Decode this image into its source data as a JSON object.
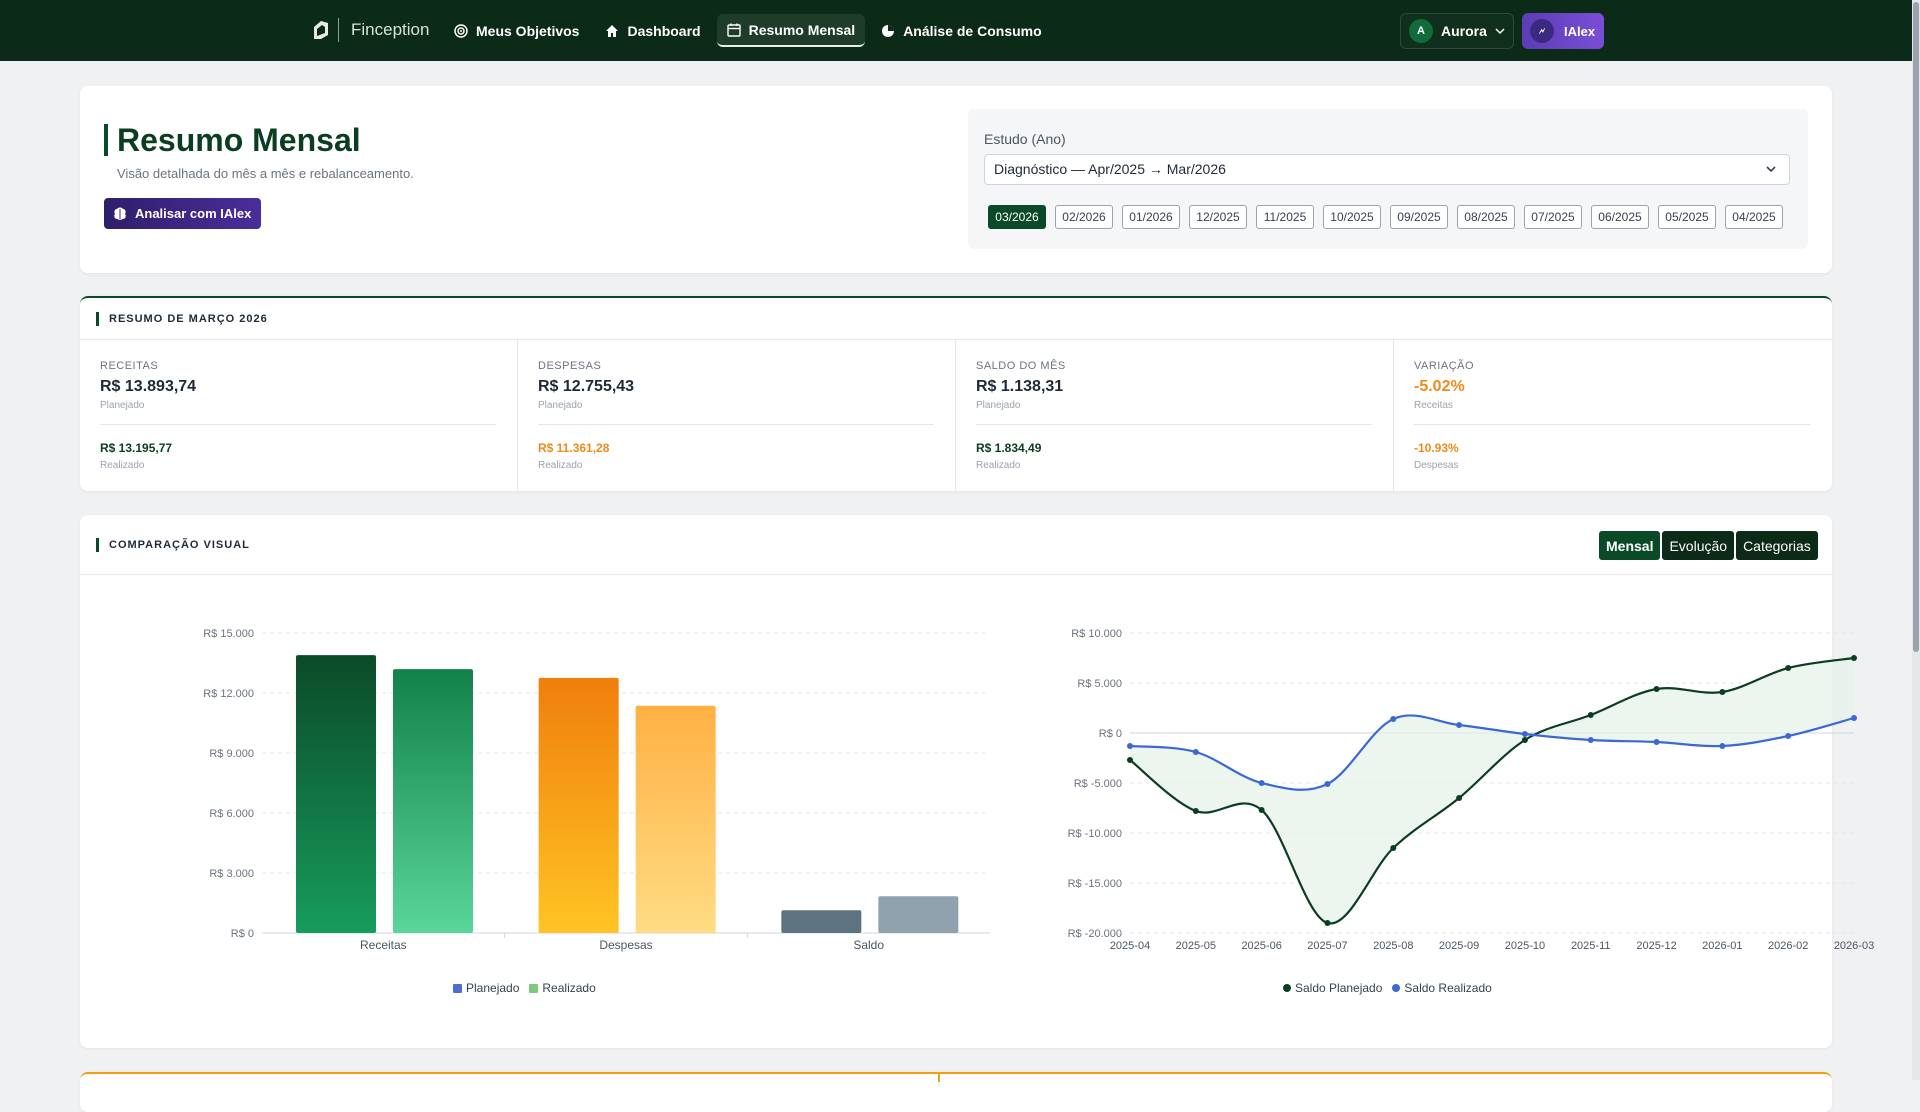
{
  "nav": {
    "brand": "Finception",
    "items": [
      {
        "label": "Meus Objetivos",
        "icon": "target-icon"
      },
      {
        "label": "Dashboard",
        "icon": "home-icon"
      },
      {
        "label": "Resumo Mensal",
        "icon": "calendar-icon",
        "active": true
      },
      {
        "label": "Análise de Consumo",
        "icon": "pie-icon"
      }
    ],
    "user": {
      "initial": "A",
      "name": "Aurora"
    },
    "ialex": {
      "initial": "🗲",
      "label": "IAlex"
    }
  },
  "header": {
    "title": "Resumo Mensal",
    "subtitle": "Visão detalhada do mês a mês e rebalanceamento.",
    "analyze_button": "Analisar com IAlex",
    "study_label": "Estudo (Ano)",
    "study_value": "Diagnóstico — Apr/2025 → Mar/2026",
    "months": [
      "03/2026",
      "02/2026",
      "01/2026",
      "12/2025",
      "11/2025",
      "10/2025",
      "09/2025",
      "08/2025",
      "07/2025",
      "06/2025",
      "05/2025",
      "04/2025"
    ],
    "active_month": "03/2026"
  },
  "summary": {
    "title": "RESUMO DE MARÇO 2026",
    "cols": [
      {
        "label": "RECEITAS",
        "value": "R$ 13.893,74",
        "sub": "Planejado",
        "value2": "R$ 13.195,77",
        "sub2": "Realizado",
        "color1": "#1f2937",
        "color2": "#0b3d21"
      },
      {
        "label": "DESPESAS",
        "value": "R$ 12.755,43",
        "sub": "Planejado",
        "value2": "R$ 11.361,28",
        "sub2": "Realizado",
        "color1": "#1f2937",
        "color2": "#f08a1c"
      },
      {
        "label": "SALDO DO MÊS",
        "value": "R$ 1.138,31",
        "sub": "Planejado",
        "value2": "R$ 1.834,49",
        "sub2": "Realizado",
        "color1": "#1f2937",
        "color2": "#0b3d21"
      },
      {
        "label": "VARIAÇÃO",
        "value": "-5.02%",
        "sub": "Receitas",
        "value2": "-10.93%",
        "sub2": "Despesas",
        "color1": "#f08a1c",
        "color2": "#f08a1c"
      }
    ]
  },
  "comparison": {
    "title": "COMPARAÇÃO VISUAL",
    "tabs": [
      "Mensal",
      "Evolução",
      "Categorias"
    ],
    "active_tab": "Mensal"
  },
  "chart_data": [
    {
      "type": "bar",
      "categories": [
        "Receitas",
        "Despesas",
        "Saldo"
      ],
      "series": [
        {
          "name": "Planejado",
          "values": [
            13893.74,
            12755.43,
            1138.31
          ]
        },
        {
          "name": "Realizado",
          "values": [
            13195.77,
            11361.28,
            1834.49
          ]
        }
      ],
      "ylim": [
        0,
        15000
      ],
      "yticks": [
        "R$ 15.000",
        "R$ 12.000",
        "R$ 9.000",
        "R$ 6.000",
        "R$ 3.000",
        "R$ 0"
      ],
      "colors": {
        "planejado_legend": "#4f6fd0",
        "realizado_legend": "#7fc97f"
      },
      "legend": "bottom-center",
      "grid": true
    },
    {
      "type": "line",
      "x": [
        "2025-04",
        "2025-05",
        "2025-06",
        "2025-07",
        "2025-08",
        "2025-09",
        "2025-10",
        "2025-11",
        "2025-12",
        "2026-01",
        "2026-02",
        "2026-03"
      ],
      "series": [
        {
          "name": "Saldo Planejado",
          "color": "#0b3d21",
          "values": [
            -2700,
            -7800,
            -7700,
            -19000,
            -11500,
            -6500,
            -700,
            1800,
            4400,
            4100,
            6500,
            7500
          ]
        },
        {
          "name": "Saldo Realizado",
          "color": "#3b68d4",
          "values": [
            -1300,
            -1900,
            -5000,
            -5100,
            1400,
            800,
            -100,
            -700,
            -900,
            -1300,
            -300,
            1500
          ]
        }
      ],
      "ylim": [
        -20000,
        10000
      ],
      "yticks": [
        "R$ 10.000",
        "R$ 5.000",
        "R$ 0",
        "R$ -5.000",
        "R$ -10.000",
        "R$ -15.000",
        "R$ -20.000"
      ],
      "legend": "bottom-center",
      "grid": true
    }
  ]
}
